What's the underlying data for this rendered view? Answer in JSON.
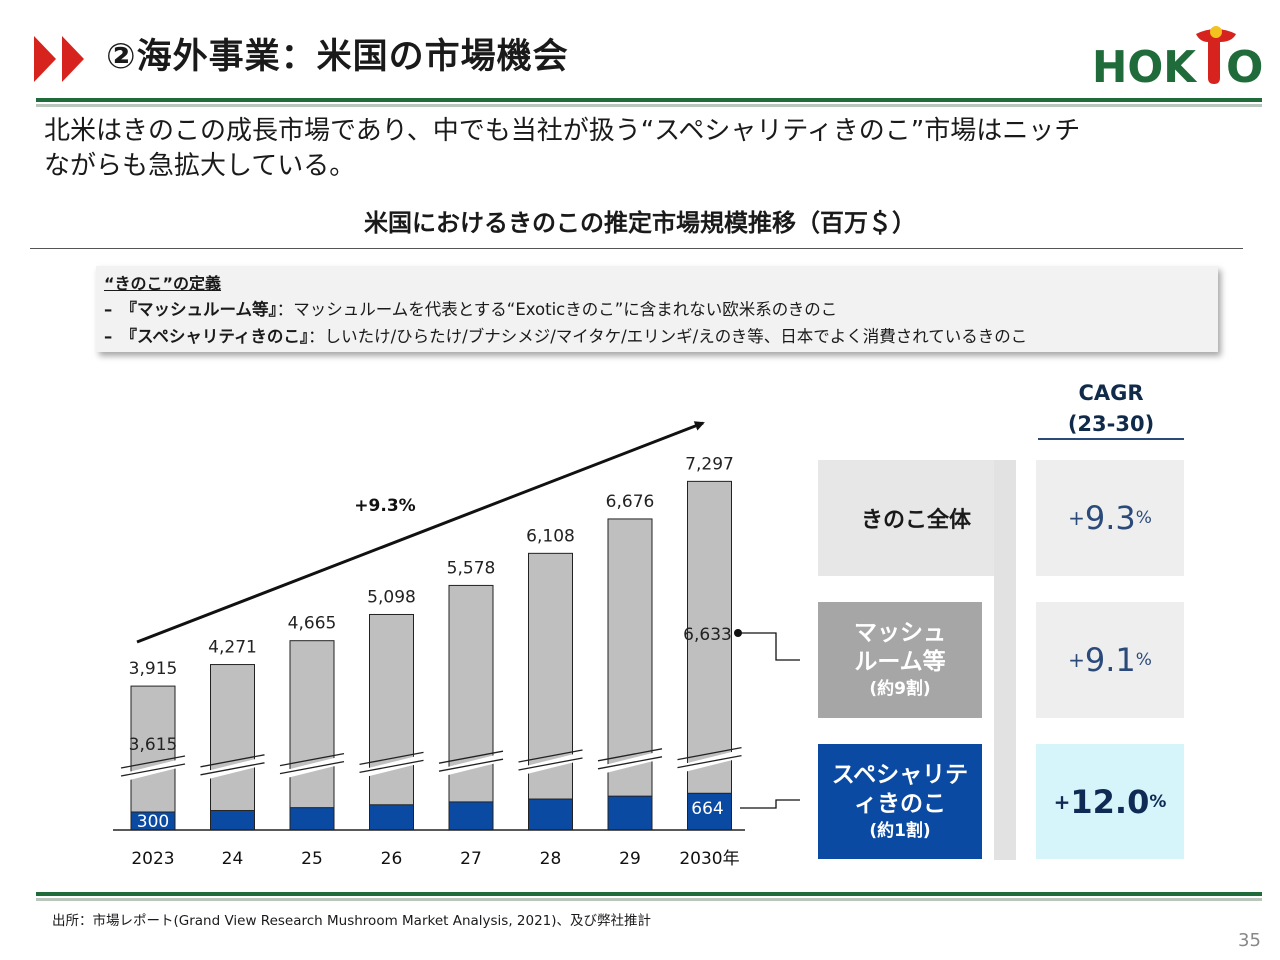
{
  "header": {
    "title": "②海外事業：米国の市場機会",
    "logo_text": "HOKTO"
  },
  "lead": {
    "line1": "北米はきのこの成長市場であり、中でも当社が扱う“スペシャリティきのこ”市場はニッチ",
    "line2": "ながらも急拡大している。"
  },
  "definition": {
    "heading": "“きのこ”の定義",
    "row1_label": "–　『マッシュルーム等』",
    "row1_text": "：マッシュルームを代表とする“Exoticきのこ”に含まれない欧米系のきのこ",
    "row2_label": "–　『スペシャリティきのこ』",
    "row2_text": "：しいたけ/ひらたけ/ブナシメジ/マイタケ/エリンギ/えのき等、日本でよく消費されているきのこ"
  },
  "cagr": {
    "heading_line1": "CAGR",
    "heading_line2": "(23-30)",
    "rows": [
      {
        "plus": "+",
        "value": "9.3",
        "pct": "%"
      },
      {
        "plus": "+",
        "value": "9.1",
        "pct": "%"
      },
      {
        "plus": "+",
        "value": "12.0",
        "pct": "%"
      }
    ]
  },
  "categories": {
    "total": "きのこ全体",
    "mushroom_line1": "マッシュ",
    "mushroom_line2": "ルーム等",
    "mushroom_share": "(約9割)",
    "specialty_line1": "スペシャリテ",
    "specialty_line2": "ィきのこ",
    "specialty_share": "(約1割)"
  },
  "chart_data": {
    "type": "bar",
    "title": "米国におけるきのこの推定市場規模推移（百万＄）",
    "categories": [
      "2023",
      "24",
      "25",
      "26",
      "27",
      "28",
      "29",
      "2030年"
    ],
    "series": [
      {
        "name": "マッシュルーム等",
        "values": [
          3615,
          null,
          null,
          null,
          null,
          null,
          null,
          6633
        ]
      },
      {
        "name": "スペシャリティきのこ",
        "values": [
          300,
          null,
          null,
          null,
          null,
          null,
          null,
          664
        ]
      }
    ],
    "totals": [
      3915,
      4271,
      4665,
      5098,
      5578,
      6108,
      6676,
      7297
    ],
    "total_labels": [
      "3,915",
      "4,271",
      "4,665",
      "5,098",
      "5,578",
      "6,108",
      "6,676",
      "7,297"
    ],
    "mushroom_labels": [
      "3,615",
      "6,633"
    ],
    "specialty_labels": [
      "300",
      "664"
    ],
    "trend_label": "+9.3%",
    "axis_break": true,
    "colors": {
      "total": "#bfbfbf",
      "specialty": "#0b4aa2",
      "arrow": "#111111"
    }
  },
  "footer": {
    "source": "出所：市場レポート(Grand View Research Mushroom Market Analysis, 2021)、及び弊社推計",
    "page": "35"
  },
  "colors": {
    "green": "#1f6b3a",
    "red": "#d6231e",
    "total_box": "#e7e7e7",
    "mushroom_box": "#a6a6a6",
    "specialty_box": "#0b4aa2",
    "cagr_box": "#eeeeee",
    "cagr_highlight": "#d6f5fb"
  }
}
